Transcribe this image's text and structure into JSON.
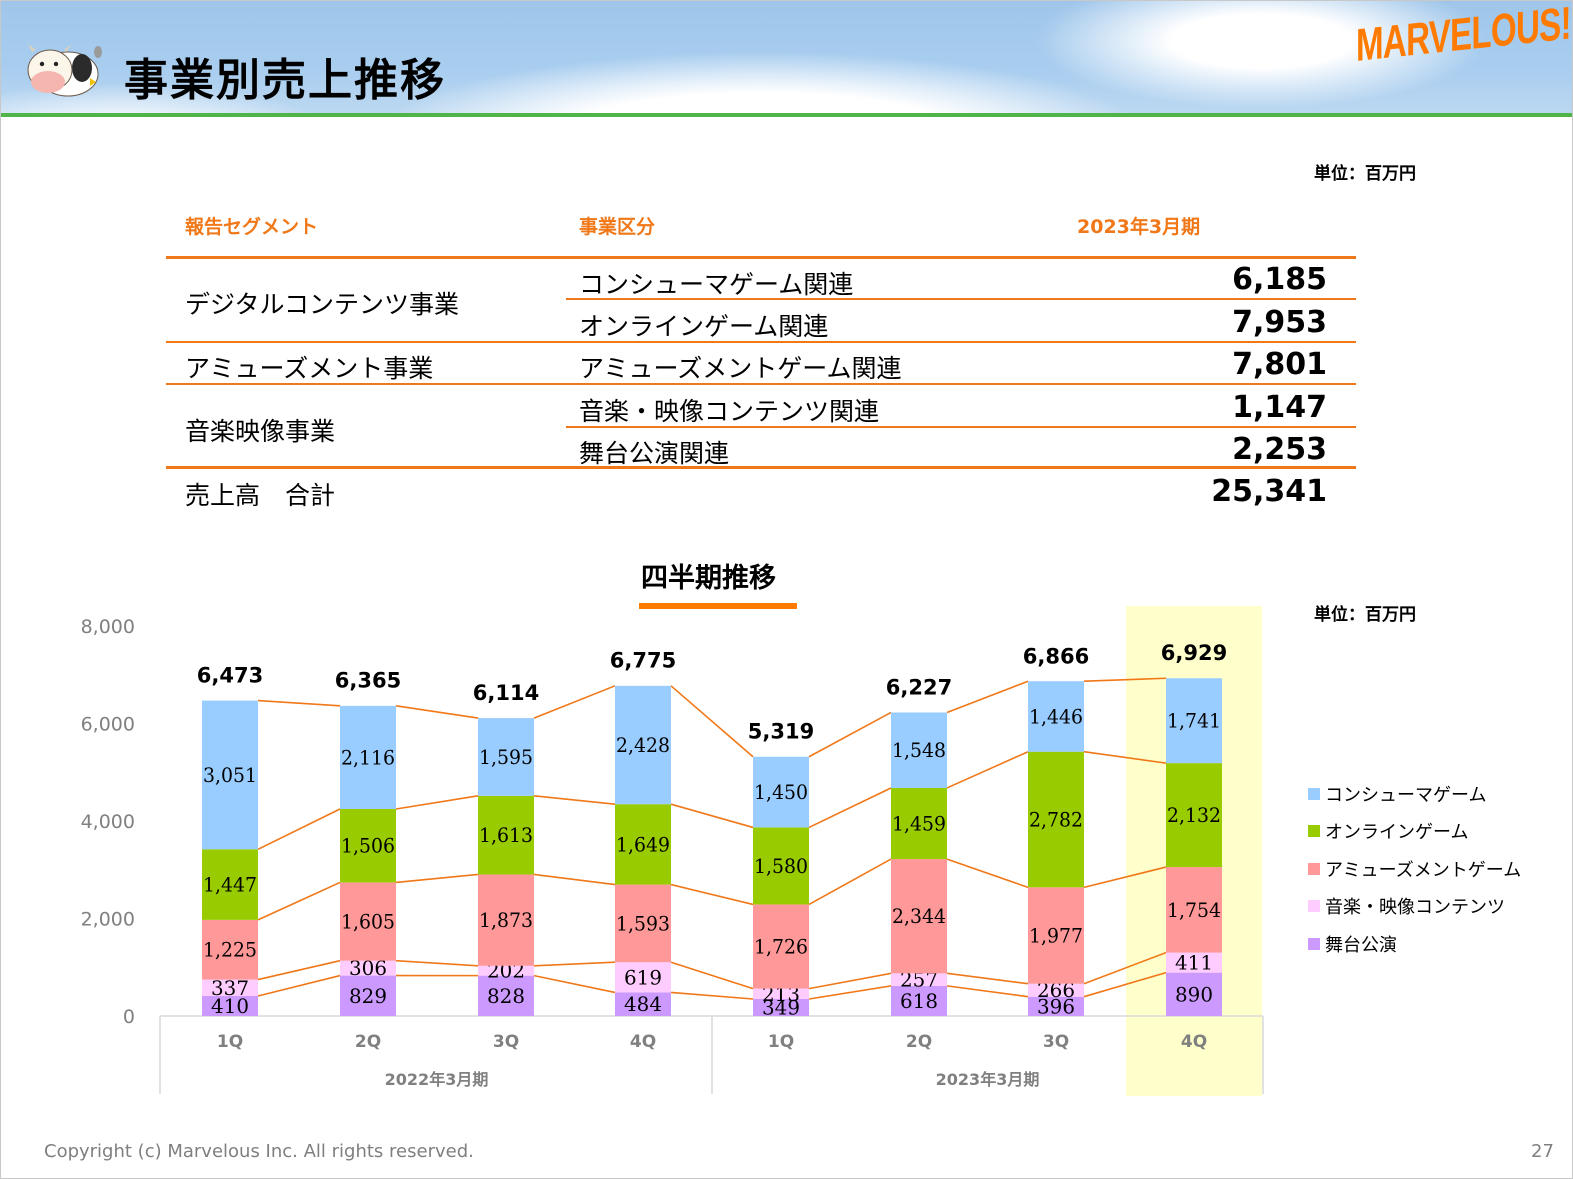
{
  "header": {
    "title": "事業別売上推移",
    "logo_text": "MARVELOUS!",
    "mascot": "cow-mascot"
  },
  "table": {
    "unit_label": "単位：百万円",
    "columns": [
      "報告セグメント",
      "事業区分",
      "2023年3月期"
    ],
    "segments": [
      {
        "name": "デジタルコンテンツ事業",
        "rows": [
          {
            "category": "コンシューマゲーム関連",
            "value": "6,185"
          },
          {
            "category": "オンラインゲーム関連",
            "value": "7,953"
          }
        ]
      },
      {
        "name": "アミューズメント事業",
        "rows": [
          {
            "category": "アミューズメントゲーム関連",
            "value": "7,801"
          }
        ]
      },
      {
        "name": "音楽映像事業",
        "rows": [
          {
            "category": "音楽・映像コンテンツ関連",
            "value": "1,147"
          },
          {
            "category": "舞台公演関連",
            "value": "2,253"
          }
        ]
      }
    ],
    "total": {
      "label": "売上高　合計",
      "value": "25,341"
    }
  },
  "chart_data": {
    "type": "bar",
    "stacked": true,
    "title": "四半期推移",
    "unit_label": "単位：百万円",
    "xlabel": "",
    "ylabel": "",
    "ylim": [
      0,
      8000
    ],
    "yticks": [
      0,
      2000,
      4000,
      6000,
      8000
    ],
    "ytick_labels": [
      "0",
      "2,000",
      "4,000",
      "6,000",
      "8,000"
    ],
    "grid": false,
    "legend_position": "right",
    "categories": [
      "1Q",
      "2Q",
      "3Q",
      "4Q",
      "1Q",
      "2Q",
      "3Q",
      "4Q"
    ],
    "category_groups": [
      {
        "label": "2022年3月期",
        "count": 4
      },
      {
        "label": "2023年3月期",
        "count": 4
      }
    ],
    "highlight_index": 7,
    "series": [
      {
        "name": "舞台公演",
        "color": "#cc99ff",
        "values": [
          410,
          829,
          828,
          484,
          349,
          618,
          396,
          890
        ]
      },
      {
        "name": "音楽・映像コンテンツ",
        "color": "#ffccff",
        "values": [
          337,
          306,
          202,
          619,
          213,
          257,
          266,
          411
        ]
      },
      {
        "name": "アミューズメントゲーム",
        "color": "#ff9999",
        "values": [
          1225,
          1605,
          1873,
          1593,
          1726,
          2344,
          1977,
          1754
        ]
      },
      {
        "name": "オンラインゲーム",
        "color": "#99cc00",
        "values": [
          1447,
          1506,
          1613,
          1649,
          1580,
          1459,
          2782,
          2132
        ]
      },
      {
        "name": "コンシューマゲーム",
        "color": "#99ccff",
        "values": [
          3051,
          2116,
          1595,
          2428,
          1450,
          1548,
          1446,
          1741
        ]
      }
    ],
    "legend_order": [
      "コンシューマゲーム",
      "オンラインゲーム",
      "アミューズメントゲーム",
      "音楽・映像コンテンツ",
      "舞台公演"
    ],
    "totals": [
      6473,
      6365,
      6114,
      6775,
      5319,
      6227,
      6866,
      6929
    ],
    "total_labels": [
      "6,473",
      "6,365",
      "6,114",
      "6,775",
      "5,319",
      "6,227",
      "6,866",
      "6,929"
    ],
    "connector_line_color": "#f07818",
    "highlight_color": "#ffffcc"
  },
  "footer": {
    "copyright": "Copyright (c) Marvelous Inc. All rights reserved.",
    "page_number": "27"
  }
}
